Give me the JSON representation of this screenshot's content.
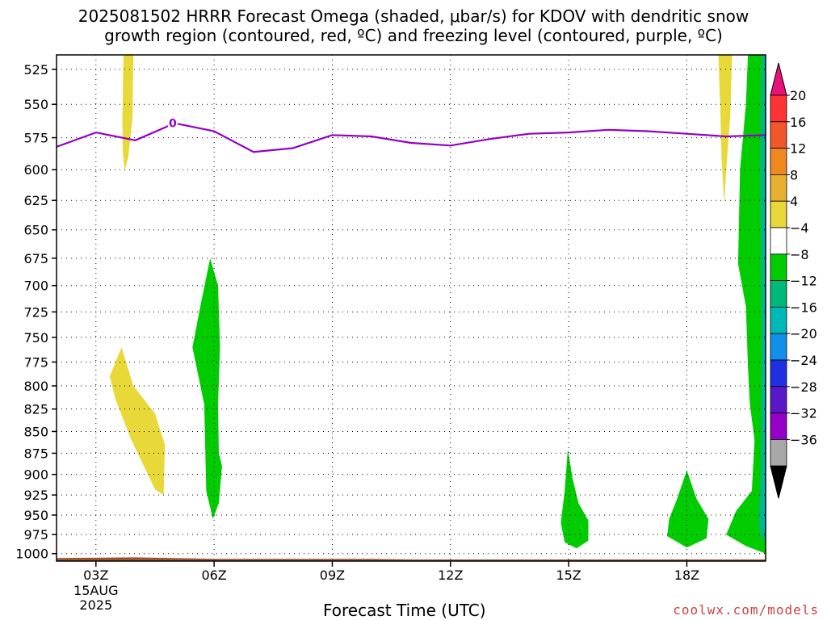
{
  "chart_data": {
    "type": "heatmap",
    "title_line1": "2025081502 HRRR Forecast Omega (shaded, μbar/s) for KDOV with dendritic snow",
    "title_line2": "growth region (contoured, red, ºC) and freezing level (contoured, purple, ºC)",
    "xlabel": "Forecast Time (UTC)",
    "date_label": [
      "15AUG",
      "2025"
    ],
    "credit": "coolwx.com/models",
    "x_ticks": [
      {
        "hour": 3,
        "label": "03Z"
      },
      {
        "hour": 6,
        "label": "06Z"
      },
      {
        "hour": 9,
        "label": "09Z"
      },
      {
        "hour": 12,
        "label": "12Z"
      },
      {
        "hour": 15,
        "label": "15Z"
      },
      {
        "hour": 18,
        "label": "18Z"
      }
    ],
    "xlim": [
      2,
      20
    ],
    "y_ticks": [
      525,
      550,
      575,
      600,
      625,
      650,
      675,
      700,
      725,
      750,
      775,
      800,
      825,
      850,
      875,
      900,
      925,
      950,
      975,
      1000
    ],
    "ylim": [
      515,
      1010
    ],
    "y_scale": "log",
    "grid": true,
    "freezing_level": {
      "color": "#9400c8",
      "label": "0",
      "label_at": {
        "hour": 4.95,
        "p": 564
      },
      "points": [
        [
          2,
          582
        ],
        [
          3,
          571
        ],
        [
          4,
          577
        ],
        [
          5,
          564
        ],
        [
          6,
          570
        ],
        [
          7,
          586
        ],
        [
          8,
          583
        ],
        [
          9,
          573
        ],
        [
          10,
          574
        ],
        [
          11,
          579
        ],
        [
          12,
          581
        ],
        [
          13,
          576
        ],
        [
          14,
          572
        ],
        [
          15,
          571
        ],
        [
          16,
          569
        ],
        [
          17,
          570
        ],
        [
          18,
          572
        ],
        [
          19,
          574
        ],
        [
          20,
          573
        ]
      ]
    },
    "omega_regions": [
      {
        "level": 4,
        "color": "#e8d838",
        "points": [
          [
            3.7,
            515
          ],
          [
            3.95,
            515
          ],
          [
            3.93,
            560
          ],
          [
            3.82,
            590
          ],
          [
            3.73,
            601
          ],
          [
            3.68,
            585
          ],
          [
            3.67,
            560
          ]
        ]
      },
      {
        "level": 4,
        "color": "#e8d838",
        "points": [
          [
            3.35,
            790
          ],
          [
            3.65,
            760
          ],
          [
            3.95,
            800
          ],
          [
            4.5,
            830
          ],
          [
            4.75,
            865
          ],
          [
            4.72,
            925
          ],
          [
            4.5,
            918
          ],
          [
            3.9,
            860
          ],
          [
            3.5,
            815
          ]
        ]
      },
      {
        "level": -4,
        "color": "#00cc00",
        "points": [
          [
            5.45,
            760
          ],
          [
            5.65,
            720
          ],
          [
            5.9,
            675
          ],
          [
            6.1,
            700
          ],
          [
            6.15,
            760
          ],
          [
            6.1,
            820
          ],
          [
            6.12,
            875
          ],
          [
            6.2,
            890
          ],
          [
            6.12,
            935
          ],
          [
            5.97,
            955
          ],
          [
            5.8,
            920
          ],
          [
            5.78,
            880
          ],
          [
            5.75,
            820
          ]
        ]
      },
      {
        "level": -4,
        "color": "#00cc00",
        "points": [
          [
            14.8,
            960
          ],
          [
            14.9,
            920
          ],
          [
            14.98,
            870
          ],
          [
            15.1,
            905
          ],
          [
            15.25,
            935
          ],
          [
            15.5,
            957
          ],
          [
            15.5,
            983
          ],
          [
            15.2,
            993
          ],
          [
            14.9,
            985
          ]
        ]
      },
      {
        "level": -4,
        "color": "#00cc00",
        "points": [
          [
            17.55,
            955
          ],
          [
            17.75,
            930
          ],
          [
            18.0,
            895
          ],
          [
            18.25,
            930
          ],
          [
            18.55,
            955
          ],
          [
            18.5,
            980
          ],
          [
            18.0,
            992
          ],
          [
            17.5,
            977
          ]
        ]
      },
      {
        "level": 4,
        "color": "#e8d838",
        "points": [
          [
            18.8,
            515
          ],
          [
            19.15,
            515
          ],
          [
            19.1,
            560
          ],
          [
            19.0,
            600
          ],
          [
            18.95,
            628
          ],
          [
            18.88,
            590
          ],
          [
            18.85,
            555
          ]
        ]
      },
      {
        "level": -4,
        "color": "#00cc00",
        "points": [
          [
            19.55,
            515
          ],
          [
            20,
            515
          ],
          [
            20,
            1000
          ],
          [
            19.5,
            990
          ],
          [
            19.0,
            975
          ],
          [
            19.25,
            945
          ],
          [
            19.65,
            920
          ],
          [
            19.72,
            860
          ],
          [
            19.6,
            820
          ],
          [
            19.55,
            780
          ],
          [
            19.5,
            720
          ],
          [
            19.3,
            680
          ],
          [
            19.35,
            600
          ],
          [
            19.5,
            550
          ]
        ]
      },
      {
        "level": -8,
        "color": "#00b878",
        "points": [
          [
            19.9,
            515
          ],
          [
            20,
            515
          ],
          [
            20,
            985
          ],
          [
            19.85,
            975
          ],
          [
            19.82,
            950
          ],
          [
            19.88,
            900
          ],
          [
            19.9,
            750
          ],
          [
            19.85,
            600
          ]
        ]
      },
      {
        "level": -12,
        "color": "#00b8b8",
        "points": [
          [
            19.97,
            515
          ],
          [
            20,
            515
          ],
          [
            20,
            980
          ],
          [
            19.93,
            960
          ],
          [
            19.95,
            700
          ]
        ]
      }
    ],
    "terrain": {
      "color": "#a0522d",
      "points": [
        [
          2,
          1006
        ],
        [
          4,
          1005
        ],
        [
          6,
          1007
        ],
        [
          10,
          1007
        ],
        [
          11,
          1008
        ],
        [
          20,
          1008
        ]
      ]
    },
    "colorbar": {
      "labels": [
        "20",
        "16",
        "12",
        "8",
        "4",
        "−4",
        "−8",
        "−12",
        "−16",
        "−20",
        "−24",
        "−28",
        "−32",
        "−36"
      ],
      "colors": [
        "#e8107a",
        "#ff3333",
        "#f0582a",
        "#f08820",
        "#e8b030",
        "#e8d838",
        "#ffffff",
        "#00cc00",
        "#00b878",
        "#00b8b8",
        "#1090e8",
        "#2030e0",
        "#5818c8",
        "#9400c8",
        "#a8a8a8",
        "#000000"
      ]
    }
  }
}
